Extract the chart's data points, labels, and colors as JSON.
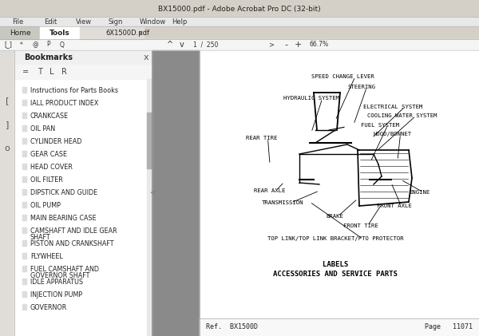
{
  "bg_color": "#f0f0f0",
  "titlebar_text": "BX15000.pdf - Adobe Acrobat Pro DC (32-bit)",
  "menubar_items": [
    "File",
    "Edit",
    "View",
    "Sign",
    "Window",
    "Help"
  ],
  "tab_home": "Home",
  "tab_tools": "Tools",
  "tab_pdf": "6X1500D.pdf",
  "bookmark_title": "Bookmarks",
  "bookmarks": [
    "Instructions for Parts Books",
    "IALL PRODUCT INDEX",
    "CRANKCASE",
    "OIL PAN",
    "CYLINDER HEAD",
    "GEAR CASE",
    "HEAD COVER",
    "OIL FILTER",
    "DIPSTICK AND GUIDE",
    "OIL PUMP",
    "MAIN BEARING CASE",
    "CAMSHAFT AND IDLE GEAR\nSHAFT",
    "PISTON AND CRANKSHAFT",
    "FLYWHEEL",
    "FUEL CAMSHAFT AND\nGOVERNOR SHAFT",
    "IDLE APPARATUS",
    "INJECTION PUMP",
    "GOVERNOR"
  ],
  "gray_bar_color": "#8a8a8a",
  "footer_ref": "Ref.  BX1500D",
  "footer_page": "Page   11071",
  "page_num": "1  /  250",
  "zoom_pct": "66.7%",
  "labels_data": [
    [
      "SPEED CHANGE LEVER",
      390,
      325,
      420,
      270
    ],
    [
      "STEERING",
      435,
      312,
      443,
      265
    ],
    [
      "HYDRAULIC SYSTEM",
      355,
      298,
      390,
      255
    ],
    [
      "ELECTRICAL SYSTEM",
      455,
      287,
      466,
      248
    ],
    [
      "COOLING WATER SYSTEM",
      460,
      276,
      472,
      232
    ],
    [
      "FUEL SYSTEM",
      452,
      264,
      464,
      218
    ],
    [
      "REAR TIRE",
      308,
      248,
      338,
      215
    ],
    [
      "HOOD/BONNET",
      468,
      253,
      498,
      220
    ],
    [
      "REAR AXLE",
      318,
      182,
      356,
      193
    ],
    [
      "ENGINE",
      512,
      180,
      502,
      196
    ],
    [
      "TRANSMISSION",
      328,
      167,
      400,
      182
    ],
    [
      "FRONT AXLE",
      472,
      163,
      490,
      192
    ],
    [
      "BRAKE",
      408,
      150,
      448,
      172
    ],
    [
      "FRONT TIRE",
      430,
      138,
      478,
      165
    ],
    [
      "TOP LINK/TOP LINK BRACKET/PTO PROTECTOR",
      335,
      122,
      388,
      168
    ]
  ],
  "bottom_label1": "LABELS",
  "bottom_label2": "ACCESSORIES AND SERVICE PARTS"
}
